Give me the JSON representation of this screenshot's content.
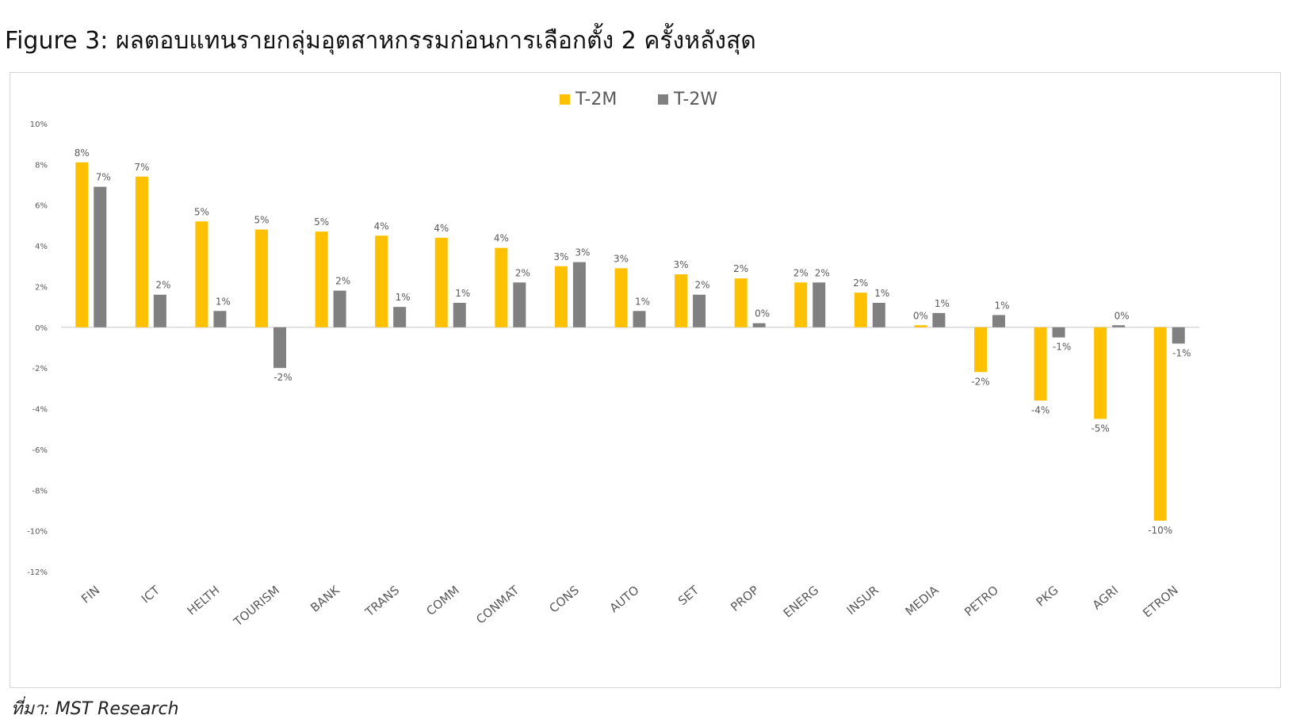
{
  "figure": {
    "title": "Figure 3: ผลตอบแทนรายกลุ่มอุตสาหกรรมก่อนการเลือกตั้ง 2 ครั้งหลังสุด",
    "source": "ที่มา: MST Research"
  },
  "colors": {
    "t2m": "#FFC000",
    "t2w": "#808080",
    "axis": "#d9d9d9",
    "text": "#595959"
  },
  "chart_data": {
    "type": "bar",
    "categories": [
      "FIN",
      "ICT",
      "HELTH",
      "TOURISM",
      "BANK",
      "TRANS",
      "COMM",
      "CONMAT",
      "CONS",
      "AUTO",
      "SET",
      "PROP",
      "ENERG",
      "INSUR",
      "MEDIA",
      "PETRO",
      "PKG",
      "AGRI",
      "ETRON"
    ],
    "series": [
      {
        "name": "T-2M",
        "values": [
          8.1,
          7.4,
          5.2,
          4.8,
          4.7,
          4.5,
          4.4,
          3.9,
          3.0,
          2.9,
          2.6,
          2.4,
          2.2,
          1.7,
          0.1,
          -2.2,
          -3.6,
          -4.5,
          -9.5
        ],
        "labels": [
          "8%",
          "7%",
          "5%",
          "5%",
          "5%",
          "4%",
          "4%",
          "4%",
          "3%",
          "3%",
          "3%",
          "2%",
          "2%",
          "2%",
          "0%",
          "-2%",
          "-4%",
          "-5%",
          "-10%"
        ]
      },
      {
        "name": "T-2W",
        "values": [
          6.9,
          1.6,
          0.8,
          -2.0,
          1.8,
          1.0,
          1.2,
          2.2,
          3.2,
          0.8,
          1.6,
          0.2,
          2.2,
          1.2,
          0.7,
          0.6,
          -0.5,
          0.1,
          -0.8
        ],
        "labels": [
          "7%",
          "2%",
          "1%",
          "-2%",
          "2%",
          "1%",
          "1%",
          "2%",
          "3%",
          "1%",
          "2%",
          "0%",
          "2%",
          "1%",
          "1%",
          "1%",
          "-1%",
          "0%",
          "-1%"
        ]
      }
    ],
    "ylim": [
      -12,
      10
    ],
    "yticks": [
      10,
      8,
      6,
      4,
      2,
      0,
      -2,
      -4,
      -6,
      -8,
      -10,
      -12
    ],
    "ytick_labels": [
      "10%",
      "8%",
      "6%",
      "4%",
      "2%",
      "0%",
      "-2%",
      "-4%",
      "-6%",
      "-8%",
      "-10%",
      "-12%"
    ],
    "legend_position": "top-center",
    "grid": false
  }
}
